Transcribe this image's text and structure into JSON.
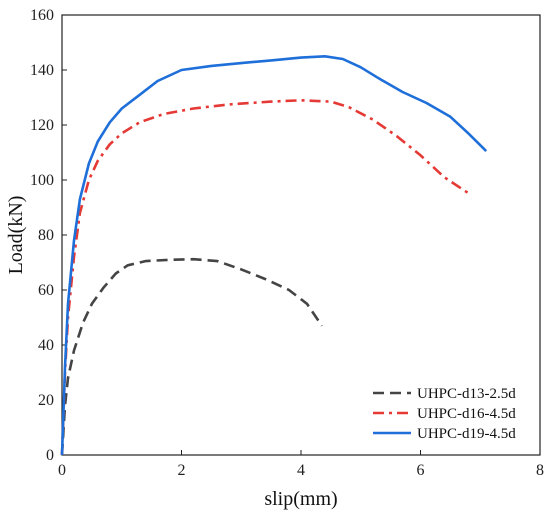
{
  "chart_data": {
    "type": "line",
    "xlabel": "slip(mm)",
    "ylabel": "Load(kN)",
    "xlim": [
      0,
      8
    ],
    "ylim": [
      0,
      160
    ],
    "xticks": [
      0,
      2,
      4,
      6,
      8
    ],
    "yticks": [
      0,
      20,
      40,
      60,
      80,
      100,
      120,
      140,
      160
    ],
    "xtick_labels": [
      "0",
      "2",
      "4",
      "6",
      "8"
    ],
    "ytick_labels": [
      "0",
      "20",
      "40",
      "60",
      "80",
      "100",
      "120",
      "140",
      "160"
    ],
    "grid": false,
    "legend_position": "bottom-right",
    "series": [
      {
        "name": "UHPC-d13-2.5d",
        "color": "#444444",
        "style": "dashed",
        "points": [
          [
            0,
            0
          ],
          [
            0.05,
            18
          ],
          [
            0.1,
            28
          ],
          [
            0.2,
            38
          ],
          [
            0.35,
            48
          ],
          [
            0.5,
            55
          ],
          [
            0.7,
            61
          ],
          [
            0.9,
            66
          ],
          [
            1.1,
            69
          ],
          [
            1.4,
            70.5
          ],
          [
            1.8,
            71
          ],
          [
            2.2,
            71.2
          ],
          [
            2.6,
            70.5
          ],
          [
            3.0,
            67.5
          ],
          [
            3.4,
            64
          ],
          [
            3.8,
            60
          ],
          [
            4.1,
            55
          ],
          [
            4.35,
            47
          ]
        ]
      },
      {
        "name": "UHPC-d16-4.5d",
        "color": "#e53935",
        "style": "dashdot",
        "points": [
          [
            0,
            0
          ],
          [
            0.05,
            30
          ],
          [
            0.1,
            50
          ],
          [
            0.2,
            72
          ],
          [
            0.3,
            88
          ],
          [
            0.45,
            100
          ],
          [
            0.6,
            107
          ],
          [
            0.8,
            113
          ],
          [
            1.0,
            117
          ],
          [
            1.3,
            121
          ],
          [
            1.7,
            124
          ],
          [
            2.2,
            126
          ],
          [
            2.8,
            127.5
          ],
          [
            3.5,
            128.5
          ],
          [
            4.0,
            129
          ],
          [
            4.5,
            128.5
          ],
          [
            4.8,
            126.5
          ],
          [
            5.2,
            122
          ],
          [
            5.6,
            116
          ],
          [
            6.0,
            109
          ],
          [
            6.4,
            101
          ],
          [
            6.85,
            94.5
          ]
        ]
      },
      {
        "name": "UHPC-d19-4.5d",
        "color": "#1e6fd9",
        "style": "solid",
        "points": [
          [
            0,
            0
          ],
          [
            0.05,
            32
          ],
          [
            0.1,
            55
          ],
          [
            0.2,
            78
          ],
          [
            0.3,
            93
          ],
          [
            0.45,
            106
          ],
          [
            0.6,
            114
          ],
          [
            0.8,
            121
          ],
          [
            1.0,
            126
          ],
          [
            1.3,
            131
          ],
          [
            1.6,
            136
          ],
          [
            2.0,
            140
          ],
          [
            2.5,
            141.5
          ],
          [
            3.0,
            142.5
          ],
          [
            3.5,
            143.5
          ],
          [
            4.0,
            144.5
          ],
          [
            4.4,
            145
          ],
          [
            4.7,
            144
          ],
          [
            5.0,
            141
          ],
          [
            5.3,
            137
          ],
          [
            5.7,
            132
          ],
          [
            6.1,
            128
          ],
          [
            6.5,
            123
          ],
          [
            6.8,
            117
          ],
          [
            7.1,
            110.5
          ]
        ]
      }
    ]
  }
}
